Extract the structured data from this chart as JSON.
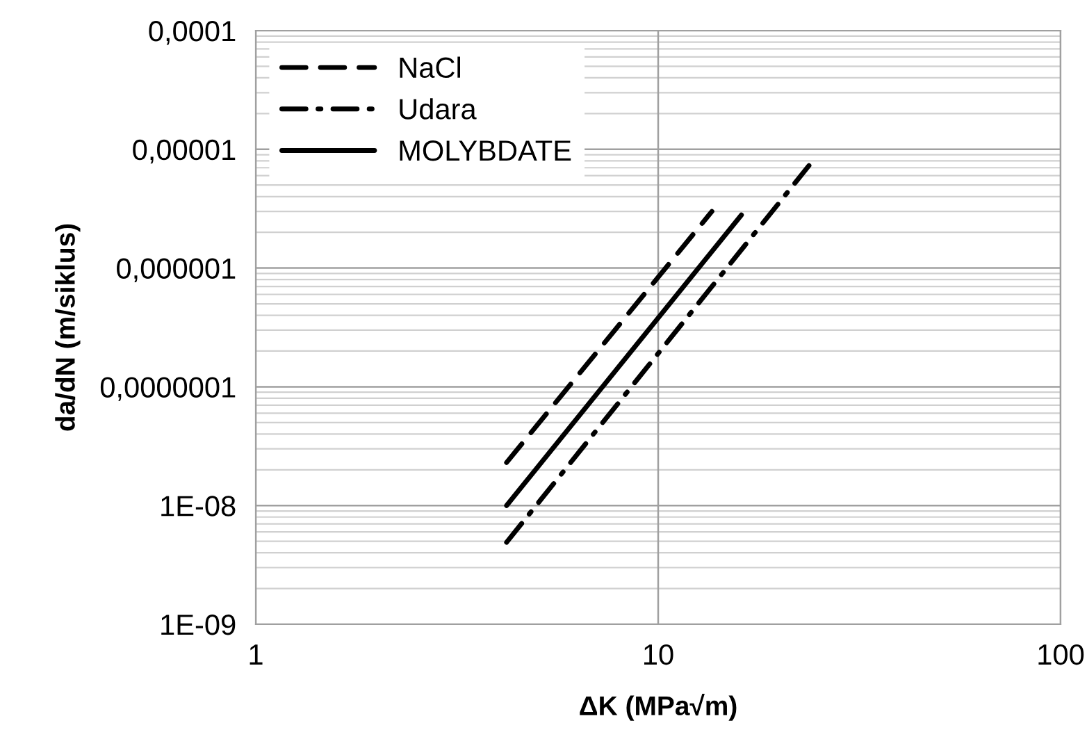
{
  "chart_data": {
    "type": "line",
    "xlabel": "ΔK (MPa√m)",
    "ylabel": "da/dN (m/siklus)",
    "log": "xy",
    "xlim": [
      1,
      100
    ],
    "xticks": [
      1,
      10,
      100
    ],
    "ylim": [
      1e-09,
      0.0001
    ],
    "yticks": [
      {
        "value": 1e-09,
        "label": "1E-09"
      },
      {
        "value": 1e-08,
        "label": "1E-08"
      },
      {
        "value": 1e-07,
        "label": "0,0000001"
      },
      {
        "value": 1e-06,
        "label": "0,000001"
      },
      {
        "value": 1e-05,
        "label": "0,00001"
      },
      {
        "value": 0.0001,
        "label": "0,0001"
      }
    ],
    "grid": true,
    "legend": "top left",
    "marker": "none",
    "series": [
      {
        "name": "NaCl",
        "color": "#000000",
        "line_style": "dashed",
        "x": [
          4.2,
          13.6
        ],
        "values": [
          2.3e-08,
          3e-06
        ]
      },
      {
        "name": "Udara",
        "color": "#000000",
        "line_style": "dashdot",
        "x": [
          4.2,
          23.7
        ],
        "values": [
          4.9e-09,
          7.3e-06
        ]
      },
      {
        "name": "MOLYBDATE",
        "color": "#000000",
        "line_style": "solid",
        "x": [
          4.2,
          16.1
        ],
        "values": [
          1e-08,
          2.8e-06
        ]
      }
    ]
  }
}
